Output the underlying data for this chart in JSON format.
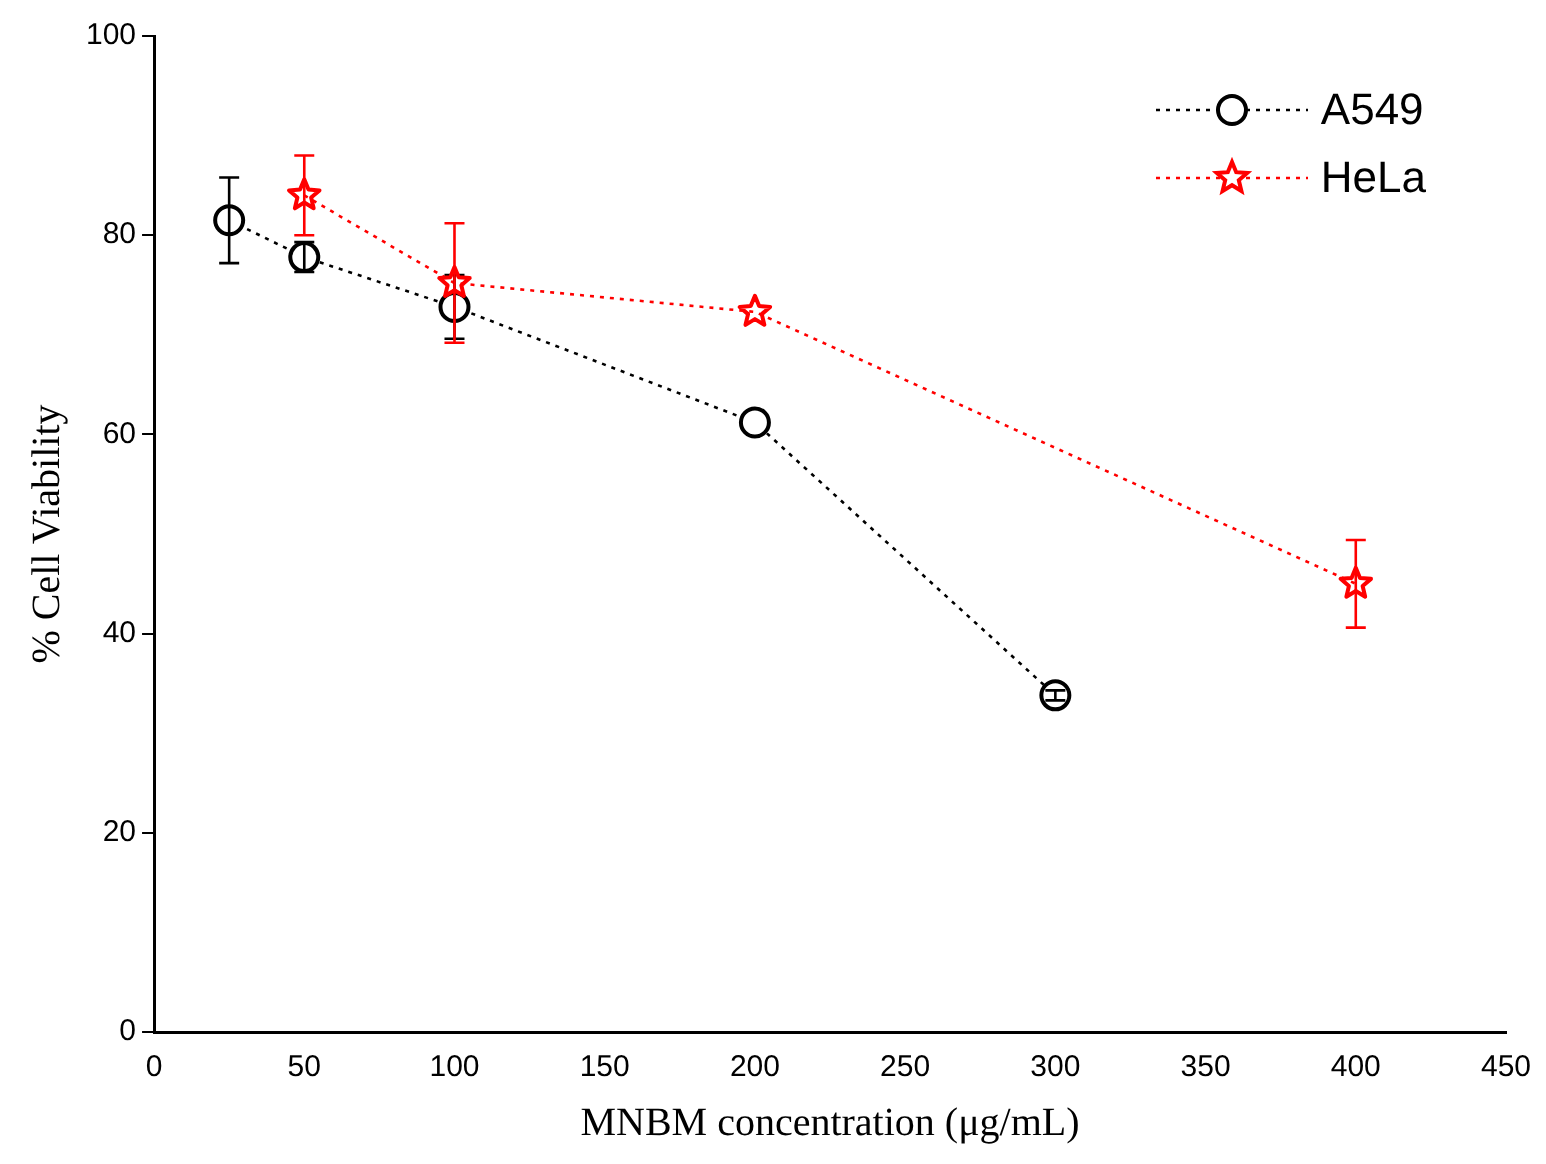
{
  "chart_data": {
    "type": "line",
    "xlabel": "MNBM concentration (μg/mL)",
    "ylabel": "% Cell Viability",
    "xlim": [
      0,
      450
    ],
    "xticks": [
      0,
      50,
      100,
      150,
      200,
      250,
      300,
      350,
      400,
      450
    ],
    "ylim": [
      0,
      100
    ],
    "yticks": [
      0,
      20,
      40,
      60,
      80,
      100
    ],
    "grid": false,
    "legend": "top right",
    "line_style": "dotted",
    "series": [
      {
        "name": "A549",
        "color": "#000000",
        "marker": "circle",
        "x": [
          25,
          50,
          100,
          200,
          300
        ],
        "values": [
          81.5,
          77.8,
          72.8,
          61.2,
          33.8
        ],
        "errors": [
          4.3,
          1.5,
          3.2,
          null,
          0.5
        ]
      },
      {
        "name": "HeLa",
        "color": "#ff0000",
        "marker": "star",
        "x": [
          50,
          100,
          200,
          400
        ],
        "values": [
          84,
          75.2,
          72.3,
          45
        ],
        "errors": [
          4,
          6,
          null,
          4.4
        ]
      }
    ]
  }
}
